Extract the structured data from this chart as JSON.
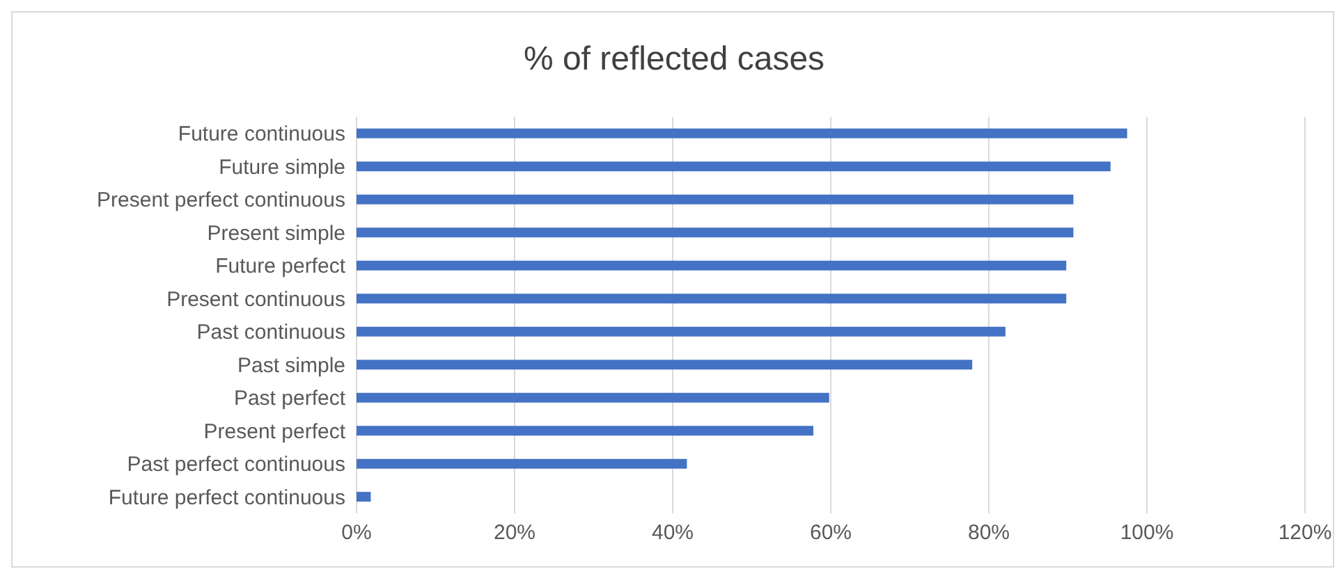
{
  "chart_data": {
    "type": "bar",
    "orientation": "horizontal",
    "title": "% of reflected cases",
    "categories": [
      "Future continuous",
      "Future simple",
      "Present perfect continuous",
      "Present simple",
      "Future perfect",
      "Present continuous",
      "Past continuous",
      "Past simple",
      "Past perfect",
      "Present perfect",
      "Past perfect continuous",
      "Future perfect continuous"
    ],
    "values": [
      97.5,
      95.4,
      90.7,
      90.7,
      89.8,
      89.8,
      82.1,
      77.9,
      59.8,
      57.8,
      41.8,
      1.8
    ],
    "color": "#4472c4",
    "xlim": [
      0,
      120
    ],
    "xticks": [
      {
        "value": 0,
        "label": "0%"
      },
      {
        "value": 20,
        "label": "20%"
      },
      {
        "value": 40,
        "label": "40%"
      },
      {
        "value": 60,
        "label": "60%"
      },
      {
        "value": 80,
        "label": "80%"
      },
      {
        "value": 100,
        "label": "100%"
      },
      {
        "value": 120,
        "label": "120%"
      }
    ],
    "grid": "x",
    "legend": false
  }
}
